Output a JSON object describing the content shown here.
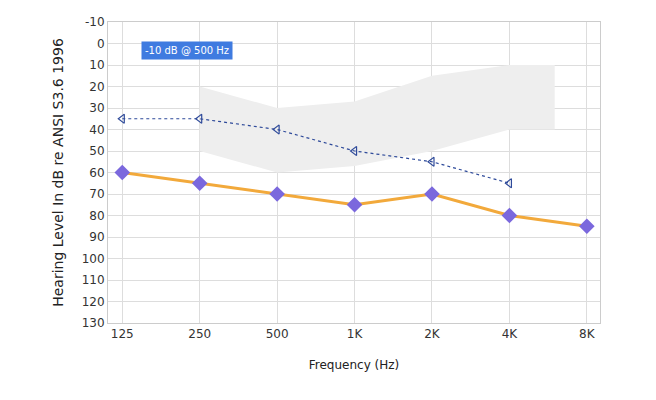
{
  "chart_data": {
    "type": "line",
    "x_label": "Frequency (Hz)",
    "y_label": "Hearing Level In dB re ANSI S3.6 1996",
    "annotation": "-10 dB @ 500 Hz",
    "log": "x",
    "grid": true,
    "xlim": [
      110,
      9000
    ],
    "xticks": [
      125,
      250,
      500,
      {
        "value": 1000,
        "label": "1K"
      },
      {
        "value": 2000,
        "label": "2K"
      },
      {
        "value": 4000,
        "label": "4K"
      },
      {
        "value": 8000,
        "label": "8K"
      }
    ],
    "ylim": [
      -10,
      130
    ],
    "yticks": [
      -10,
      0,
      10,
      20,
      30,
      40,
      50,
      60,
      70,
      80,
      90,
      100,
      110,
      120,
      130
    ],
    "region": {
      "x": [
        250,
        500,
        1000,
        2000,
        4000,
        6000,
        6000,
        4000,
        2000,
        1000,
        500,
        250
      ],
      "y": [
        20,
        30,
        27,
        15,
        10,
        10,
        40,
        40,
        50,
        57,
        60,
        50
      ],
      "color": "#eeeeee"
    },
    "series": [
      {
        "x": [
          125,
          250,
          500,
          1000,
          2000,
          4000
        ],
        "values": [
          35,
          35,
          40,
          50,
          55,
          65
        ],
        "color": "#2e4a9a",
        "marker": "chevron-left",
        "line_style": "dotted"
      },
      {
        "x": [
          125,
          250,
          500,
          1000,
          2000,
          4000,
          8000
        ],
        "values": [
          60,
          65,
          70,
          75,
          70,
          80,
          85
        ],
        "color": "#f2a93b",
        "marker": "diamond",
        "line_style": "solid"
      }
    ]
  }
}
